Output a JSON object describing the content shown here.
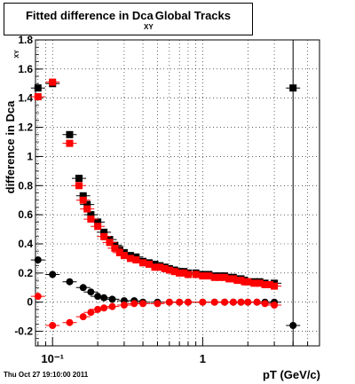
{
  "chart_data": {
    "type": "scatter",
    "title": "Fitted difference in Dca",
    "title_subscript": "XY",
    "title_suffix": "Global Tracks",
    "xlabel": "pT (GeV/c)",
    "ylabel": "difference in Dca",
    "ylabel_subscript": "XY",
    "x_scale": "log",
    "xlim": [
      0.077,
      6.0
    ],
    "ylim": [
      -0.3,
      1.8
    ],
    "x_ticks": [
      {
        "value": 0.1,
        "label": "10⁻¹"
      },
      {
        "value": 1,
        "label": "1"
      }
    ],
    "y_ticks": [
      -0.2,
      0,
      0.2,
      0.4,
      0.6,
      0.8,
      1,
      1.2,
      1.4,
      1.6,
      1.8
    ],
    "y_tick_labels": [
      "-0.2",
      "0",
      "0.2",
      "0.4",
      "0.6",
      "0.8",
      "1",
      "1.2",
      "1.4",
      "1.6",
      "1.8"
    ],
    "grid": true,
    "vertical_line_x": 4.0,
    "series": [
      {
        "color": "#000000",
        "marker": "square",
        "x": [
          0.08,
          0.1,
          0.13,
          0.15,
          0.16,
          0.17,
          0.18,
          0.2,
          0.22,
          0.24,
          0.26,
          0.28,
          0.3,
          0.33,
          0.36,
          0.4,
          0.44,
          0.48,
          0.52,
          0.56,
          0.6,
          0.65,
          0.7,
          0.75,
          0.8,
          0.9,
          1.0,
          1.1,
          1.2,
          1.3,
          1.4,
          1.5,
          1.6,
          1.7,
          1.8,
          1.9,
          2.0,
          2.2,
          2.4,
          2.6,
          2.8,
          3.0,
          4.0
        ],
        "y": [
          1.47,
          1.5,
          1.15,
          0.85,
          0.73,
          0.67,
          0.6,
          0.55,
          0.48,
          0.43,
          0.39,
          0.36,
          0.34,
          0.32,
          0.31,
          0.28,
          0.27,
          0.26,
          0.25,
          0.24,
          0.23,
          0.22,
          0.21,
          0.21,
          0.2,
          0.2,
          0.19,
          0.19,
          0.18,
          0.18,
          0.18,
          0.17,
          0.17,
          0.16,
          0.16,
          0.15,
          0.14,
          0.14,
          0.14,
          0.13,
          0.12,
          0.13,
          1.47
        ]
      },
      {
        "color": "#ff0000",
        "marker": "square",
        "x": [
          0.08,
          0.1,
          0.13,
          0.15,
          0.16,
          0.17,
          0.18,
          0.2,
          0.22,
          0.24,
          0.26,
          0.28,
          0.3,
          0.33,
          0.36,
          0.4,
          0.44,
          0.48,
          0.52,
          0.56,
          0.6,
          0.65,
          0.7,
          0.75,
          0.8,
          0.9,
          1.0,
          1.1,
          1.2,
          1.3,
          1.4,
          1.5,
          1.6,
          1.7,
          1.8,
          1.9,
          2.0,
          2.2,
          2.4,
          2.6,
          2.8,
          3.0
        ],
        "y": [
          1.41,
          1.51,
          1.09,
          0.8,
          0.7,
          0.64,
          0.57,
          0.52,
          0.45,
          0.41,
          0.37,
          0.34,
          0.32,
          0.3,
          0.29,
          0.27,
          0.26,
          0.24,
          0.24,
          0.23,
          0.22,
          0.21,
          0.2,
          0.2,
          0.19,
          0.19,
          0.18,
          0.18,
          0.17,
          0.17,
          0.17,
          0.16,
          0.16,
          0.15,
          0.15,
          0.14,
          0.14,
          0.13,
          0.13,
          0.12,
          0.12,
          0.11
        ]
      },
      {
        "color": "#000000",
        "marker": "circle",
        "x": [
          0.08,
          0.1,
          0.13,
          0.16,
          0.18,
          0.2,
          0.22,
          0.25,
          0.3,
          0.35,
          0.4,
          0.5,
          0.6,
          0.7,
          0.8,
          1.0,
          1.2,
          1.4,
          1.6,
          1.8,
          2.0,
          2.3,
          2.6,
          3.0,
          4.0
        ],
        "y": [
          0.29,
          0.19,
          0.14,
          0.1,
          0.07,
          0.04,
          0.03,
          0.02,
          0.01,
          0.01,
          0.0,
          0.0,
          0.0,
          0.0,
          0.0,
          0.0,
          0.0,
          0.0,
          0.0,
          0.0,
          0.0,
          0.0,
          0.0,
          0.0,
          -0.16
        ]
      },
      {
        "color": "#ff0000",
        "marker": "circle",
        "x": [
          0.08,
          0.1,
          0.13,
          0.16,
          0.18,
          0.2,
          0.22,
          0.25,
          0.3,
          0.35,
          0.4,
          0.5,
          0.6,
          0.7,
          0.8,
          1.0,
          1.2,
          1.4,
          1.6,
          1.8,
          2.0,
          2.3,
          2.6,
          3.0
        ],
        "y": [
          0.04,
          -0.16,
          -0.14,
          -0.1,
          -0.07,
          -0.05,
          -0.04,
          -0.03,
          -0.02,
          -0.01,
          -0.01,
          -0.01,
          0.0,
          0.0,
          0.0,
          0.0,
          0.0,
          0.0,
          0.0,
          0.0,
          0.0,
          0.0,
          -0.01,
          -0.02
        ]
      }
    ]
  },
  "footer_date": "Thu Oct 27 19:10:00 2011"
}
